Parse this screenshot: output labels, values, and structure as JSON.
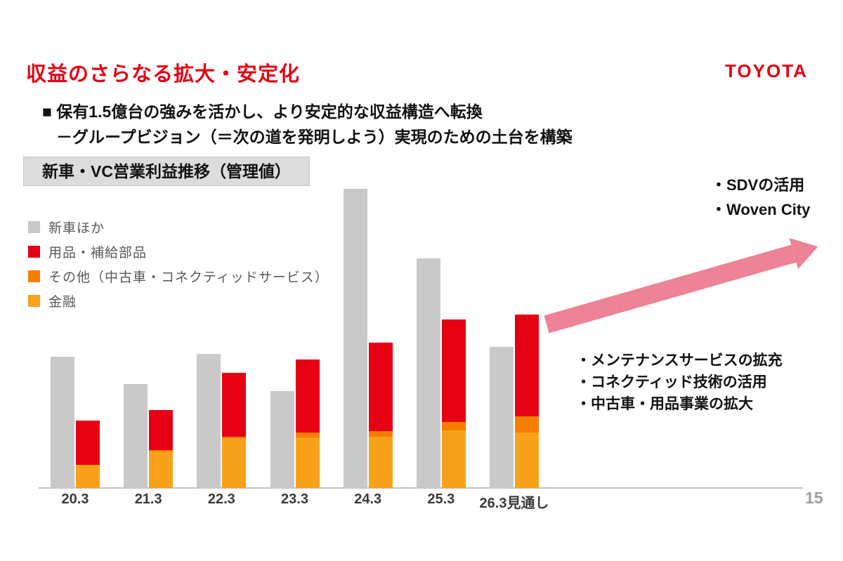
{
  "slide": {
    "title": "収益のさらなる拡大・安定化",
    "logo": "TOYOTA",
    "bullet_line1": "■ 保有1.5億台の強みを活かし、より安定的な収益構造へ転換",
    "bullet_line2": "－グループビジョン（＝次の道を発明しよう）実現のための土台を構築",
    "page_number": "15"
  },
  "chart": {
    "badge_title": "新車・VC営業利益推移（管理値）",
    "legend": [
      {
        "label": "新車ほか",
        "color_key": "gray"
      },
      {
        "label": "用品・補給部品",
        "color_key": "red"
      },
      {
        "label": "その他（中古車・コネクティッドサービス）",
        "color_key": "orange"
      },
      {
        "label": "金融",
        "color_key": "amber"
      }
    ]
  },
  "annotations": {
    "top_right": [
      "・SDVの活用",
      "・Woven City"
    ],
    "bottom_right": [
      "・メンテナンスサービスの拡充",
      "・コネクティッド技術の活用",
      "・中古車・用品事業の拡大"
    ]
  },
  "colors": {
    "accent_red": "#e60012",
    "gray": "#c9c9c9",
    "red": "#e60014",
    "orange": "#f57d00",
    "amber": "#f7a21a",
    "arrow_pink": "#ee8296",
    "axis": "#c3c3c3"
  },
  "chart_data": {
    "type": "bar",
    "title": "新車・VC営業利益推移（管理値）",
    "xlabel": "",
    "ylabel": "",
    "axis_values_shown": false,
    "note": "no numeric axis labels in source; values are relative heights estimated from pixels",
    "categories": [
      "20.3",
      "21.3",
      "22.3",
      "23.3",
      "24.3",
      "25.3",
      "26.3見通し"
    ],
    "grouped_series": {
      "name": "新車ほか",
      "color_key": "gray",
      "values": [
        187,
        148,
        191,
        138,
        426,
        327,
        201
      ]
    },
    "stacked_series": [
      {
        "name": "金融",
        "color_key": "amber",
        "values": [
          33,
          52,
          71,
          72,
          73,
          82,
          79
        ]
      },
      {
        "name": "その他（中古車・コネクティッドサービス）",
        "color_key": "orange",
        "values": [
          0,
          2,
          2,
          7,
          8,
          12,
          23
        ]
      },
      {
        "name": "用品・補給部品",
        "color_key": "red",
        "values": [
          63,
          57,
          91,
          104,
          126,
          146,
          145
        ]
      }
    ],
    "legend_position": "top-left",
    "grid": false
  }
}
